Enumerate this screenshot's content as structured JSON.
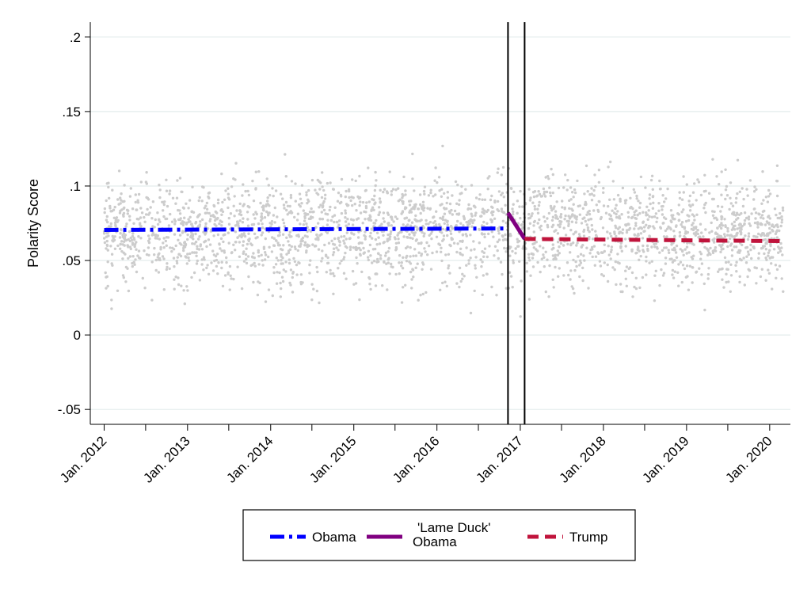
{
  "chart_data": {
    "type": "scatter",
    "title": "",
    "xlabel": "",
    "ylabel": "Polarity Score",
    "ylim": [
      -0.06,
      0.21
    ],
    "y_ticks": [
      {
        "value": -0.05,
        "label": "-.05"
      },
      {
        "value": 0,
        "label": "0"
      },
      {
        "value": 0.05,
        "label": ".05"
      },
      {
        "value": 0.1,
        "label": ".1"
      },
      {
        "value": 0.15,
        "label": ".15"
      },
      {
        "value": 0.2,
        "label": ".2"
      }
    ],
    "xlim": [
      "2011-11-01",
      "2020-04-01"
    ],
    "x_ticks": [
      {
        "value": "2012-01-01",
        "label": "Jan. 2012"
      },
      {
        "value": "2013-01-01",
        "label": "Jan. 2013"
      },
      {
        "value": "2014-01-01",
        "label": "Jan. 2014"
      },
      {
        "value": "2015-01-01",
        "label": "Jan. 2015"
      },
      {
        "value": "2016-01-01",
        "label": "Jan. 2016"
      },
      {
        "value": "2017-01-01",
        "label": "Jan. 2017"
      },
      {
        "value": "2018-01-01",
        "label": "Jan. 2018"
      },
      {
        "value": "2019-01-01",
        "label": "Jan. 2019"
      },
      {
        "value": "2020-01-01",
        "label": "Jan. 2020"
      }
    ],
    "grid": true,
    "vertical_lines": [
      "2016-11-08",
      "2017-01-20"
    ],
    "series": [
      {
        "name": "Obama",
        "style": "dash-dot",
        "color": "#0000ff",
        "points": [
          {
            "x": "2012-01-01",
            "y": 0.0705
          },
          {
            "x": "2016-11-08",
            "y": 0.0715
          }
        ]
      },
      {
        "name": "'Lame Duck' Obama",
        "style": "solid",
        "color": "#800080",
        "points": [
          {
            "x": "2016-11-08",
            "y": 0.082
          },
          {
            "x": "2017-01-20",
            "y": 0.0645
          }
        ]
      },
      {
        "name": "Trump",
        "style": "dashed",
        "color": "#c0143c",
        "points": [
          {
            "x": "2017-01-20",
            "y": 0.0645
          },
          {
            "x": "2020-03-01",
            "y": 0.063
          }
        ]
      }
    ],
    "scatter": {
      "color": "#cccccc",
      "x_start": "2012-01-01",
      "x_end": "2020-03-01",
      "count": 2800,
      "mean": 0.07,
      "spread": 0.03
    },
    "legend": {
      "placement": "bottom",
      "entries": [
        {
          "label": "Obama",
          "color": "#0000ff",
          "style": "dash-dot"
        },
        {
          "label_lines": [
            "'Lame Duck'",
            "Obama"
          ],
          "color": "#800080",
          "style": "solid"
        },
        {
          "label": "Trump",
          "color": "#c0143c",
          "style": "dashed"
        }
      ]
    }
  }
}
